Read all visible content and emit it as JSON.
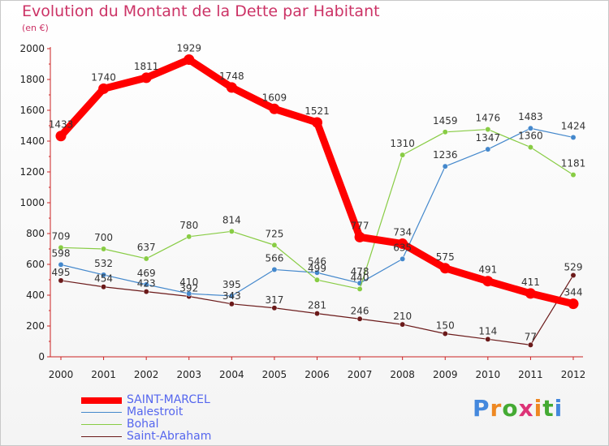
{
  "chart_data": {
    "type": "line",
    "title": "Evolution du Montant de la Dette par Habitant",
    "subtitle": "(en €)",
    "x": [
      "2000",
      "2001",
      "2002",
      "2003",
      "2004",
      "2005",
      "2006",
      "2007",
      "2008",
      "2009",
      "2010",
      "2011",
      "2012"
    ],
    "y_ticks": [
      "0",
      "200",
      "400",
      "600",
      "800",
      "1000",
      "1200",
      "1400",
      "1600",
      "1800",
      "2000"
    ],
    "ylim": [
      0,
      2000
    ],
    "grid": false,
    "legend_placement": "bottom-left",
    "series": [
      {
        "name": "SAINT-MARCEL",
        "color": "#ff0000",
        "values": [
          1433,
          1740,
          1811,
          1929,
          1748,
          1609,
          1521,
          777,
          734,
          575,
          491,
          411,
          344
        ],
        "labels": [
          "1433",
          "1740",
          "1811",
          "1929",
          "1748",
          "1609",
          "1521",
          "777",
          "734",
          "575",
          "491",
          "411",
          "344"
        ]
      },
      {
        "name": "Malestroit",
        "color": "#4488cc",
        "values": [
          598,
          532,
          469,
          410,
          395,
          566,
          546,
          478,
          635,
          1236,
          1347,
          1483,
          1424
        ],
        "labels": [
          "598",
          "532",
          "469",
          "410",
          "395",
          "566",
          "546",
          "478",
          "635",
          "1236",
          "1347",
          "1483",
          "1424"
        ]
      },
      {
        "name": "Bohal",
        "color": "#88cc44",
        "values": [
          709,
          700,
          637,
          780,
          814,
          725,
          499,
          440,
          1310,
          1459,
          1476,
          1360,
          1181
        ],
        "labels": [
          "709",
          "700",
          "637",
          "780",
          "814",
          "725",
          "499",
          "440",
          "1310",
          "1459",
          "1476",
          "1360",
          "1181"
        ]
      },
      {
        "name": "Saint-Abraham",
        "color": "#6b1a1a",
        "values": [
          495,
          454,
          423,
          392,
          343,
          317,
          281,
          246,
          210,
          150,
          114,
          77,
          529
        ],
        "labels": [
          "495",
          "454",
          "423",
          "392",
          "343",
          "317",
          "281",
          "246",
          "210",
          "150",
          "114",
          "77",
          "529"
        ]
      }
    ]
  },
  "legend": {
    "items": [
      {
        "label": "SAINT-MARCEL",
        "color": "#ff0000"
      },
      {
        "label": "Malestroit",
        "color": "#4488cc"
      },
      {
        "label": "Bohal",
        "color": "#88cc44"
      },
      {
        "label": "Saint-Abraham",
        "color": "#6b1a1a"
      }
    ]
  },
  "logo": {
    "text": "Proxiti",
    "colors": [
      "#4488dd",
      "#ee8822",
      "#44aa33",
      "#dd3377",
      "#ee8822",
      "#44aa33",
      "#4488dd"
    ]
  }
}
